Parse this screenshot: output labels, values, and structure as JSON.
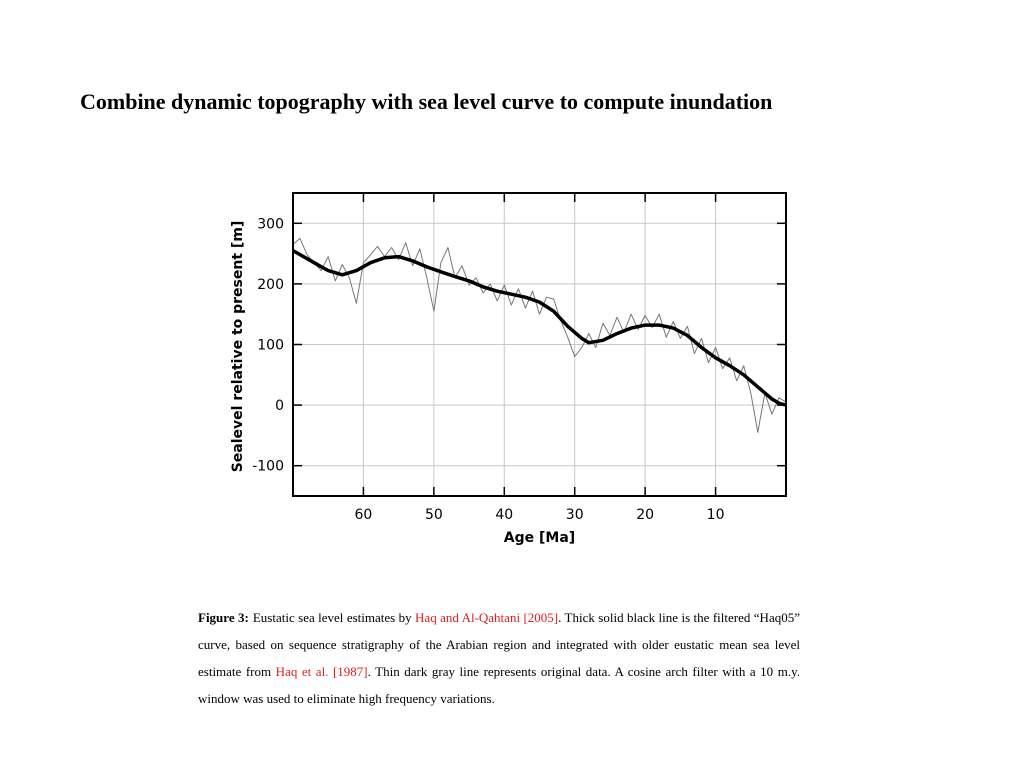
{
  "title": "Combine dynamic topography with sea level curve to compute inundation",
  "chart_data": {
    "type": "line",
    "xlabel": "Age [Ma]",
    "ylabel": "Sealevel relative to present [m]",
    "xlim": [
      70,
      0
    ],
    "ylim": [
      -150,
      350
    ],
    "xticks": [
      60,
      50,
      40,
      30,
      20,
      10
    ],
    "yticks": [
      -100,
      0,
      100,
      200,
      300
    ],
    "grid": true,
    "series": [
      {
        "color": "#777777",
        "width": 1,
        "x": [
          70,
          69,
          68,
          67,
          66,
          65,
          64,
          63,
          62,
          61,
          60,
          59,
          58,
          57,
          56,
          55,
          54,
          53,
          52,
          51,
          50,
          49,
          48,
          47,
          46,
          45,
          44,
          43,
          42,
          41,
          40,
          39,
          38,
          37,
          36,
          35,
          34,
          33,
          32,
          31,
          30,
          29,
          28,
          27,
          26,
          25,
          24,
          23,
          22,
          21,
          20,
          19,
          18,
          17,
          16,
          15,
          14,
          13,
          12,
          11,
          10,
          9,
          8,
          7,
          6,
          5,
          4,
          3,
          2,
          1,
          0
        ],
        "values": [
          265,
          275,
          248,
          235,
          222,
          245,
          205,
          232,
          210,
          168,
          235,
          248,
          262,
          245,
          260,
          240,
          268,
          230,
          258,
          210,
          155,
          235,
          260,
          210,
          230,
          198,
          210,
          185,
          200,
          172,
          198,
          165,
          192,
          160,
          188,
          150,
          178,
          175,
          140,
          112,
          80,
          95,
          118,
          95,
          135,
          115,
          145,
          120,
          150,
          125,
          148,
          128,
          150,
          112,
          138,
          110,
          130,
          85,
          110,
          70,
          95,
          60,
          78,
          40,
          65,
          20,
          -45,
          20,
          -15,
          12,
          5
        ]
      },
      {
        "color": "#000000",
        "width": 3.5,
        "x": [
          70,
          67,
          65,
          63,
          61,
          59,
          57,
          55,
          53,
          51,
          49,
          47,
          45,
          43,
          41,
          39,
          37,
          35,
          33,
          31,
          29,
          28,
          26,
          24,
          22,
          20,
          18,
          16,
          14,
          12,
          10,
          8,
          6,
          4,
          2,
          1,
          0
        ],
        "values": [
          255,
          235,
          222,
          215,
          222,
          235,
          243,
          245,
          238,
          228,
          220,
          212,
          205,
          195,
          188,
          183,
          178,
          170,
          155,
          130,
          110,
          103,
          107,
          118,
          127,
          132,
          132,
          127,
          115,
          95,
          78,
          65,
          50,
          30,
          10,
          3,
          0
        ]
      }
    ]
  },
  "caption": {
    "label": "Figure 3:",
    "runs": [
      {
        "text": "Eustatic sea level estimates by "
      },
      {
        "text": "Haq and Al-Qahtani [2005]",
        "link": true
      },
      {
        "text": ". Thick solid black line is the filtered “Haq05” curve, based on sequence stratigraphy of the Arabian region and integrated with older eustatic mean sea level estimate from "
      },
      {
        "text": "Haq et al. [1987]",
        "link": true
      },
      {
        "text": ". Thin dark gray line represents original data. A cosine arch filter with a 10 m.y. window was used to eliminate high frequency variations."
      }
    ]
  }
}
